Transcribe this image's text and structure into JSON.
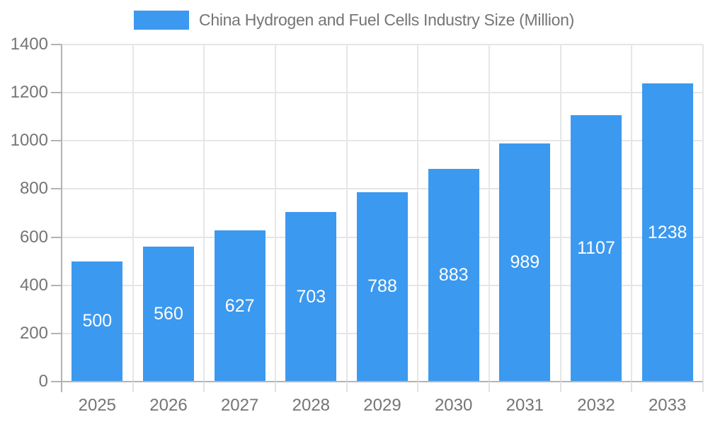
{
  "chart_data": {
    "type": "bar",
    "title": "China Hydrogen and Fuel Cells Industry Size (Million)",
    "categories": [
      "2025",
      "2026",
      "2027",
      "2028",
      "2029",
      "2030",
      "2031",
      "2032",
      "2033"
    ],
    "values": [
      500,
      560,
      627,
      703,
      788,
      883,
      989,
      1107,
      1238
    ],
    "xlabel": "",
    "ylabel": "",
    "ylim": [
      0,
      1400
    ],
    "ytick_step": 200,
    "ytick_labels": [
      "0",
      "200",
      "400",
      "600",
      "800",
      "1000",
      "1200",
      "1400"
    ],
    "grid": true,
    "legend_position": "top",
    "bar_label_position": "inside-center"
  },
  "colors": {
    "bar": "#3b99f0",
    "bar_label": "#ffffff",
    "axis_text": "#757575",
    "axis_line": "#b3b3b3",
    "boundary_tick": "#e2e2e2",
    "gridline": "#e6e6e6",
    "background": "#ffffff"
  }
}
